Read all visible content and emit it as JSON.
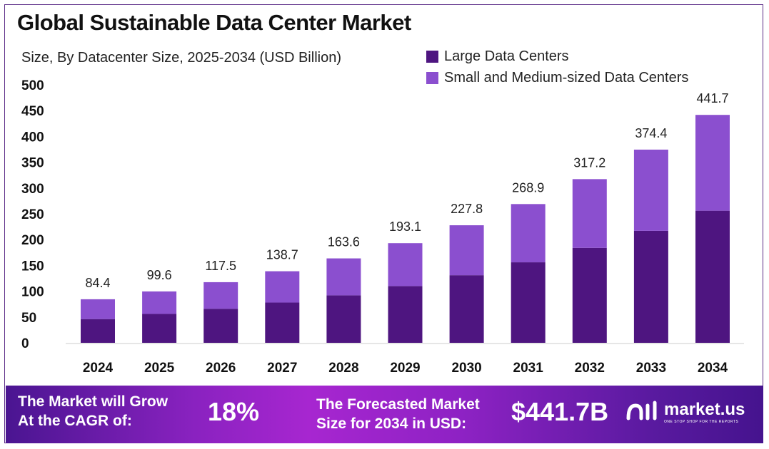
{
  "chart_data": {
    "type": "bar",
    "stacked": true,
    "title": "Global Sustainable Data Center Market",
    "subtitle": "Size, By Datacenter Size, 2025-2034 (USD Billion)",
    "categories": [
      "2024",
      "2025",
      "2026",
      "2027",
      "2028",
      "2029",
      "2030",
      "2031",
      "2032",
      "2033",
      "2034"
    ],
    "series": [
      {
        "name": "Large Data Centers",
        "color": "#4e1580",
        "values": [
          46,
          56,
          66,
          78,
          92,
          110,
          131,
          156,
          184,
          217,
          256
        ]
      },
      {
        "name": "Small and Medium-sized Data Centers",
        "color": "#8b4fcf",
        "values": [
          38.4,
          43.6,
          51.5,
          60.7,
          71.6,
          83.1,
          96.8,
          112.9,
          133.2,
          157.4,
          185.7
        ]
      }
    ],
    "totals": [
      "84.4",
      "99.6",
      "117.5",
      "138.7",
      "163.6",
      "193.1",
      "227.8",
      "268.9",
      "317.2",
      "374.4",
      "441.7"
    ],
    "yticks": [
      "0",
      "50",
      "100",
      "150",
      "200",
      "250",
      "300",
      "350",
      "400",
      "450",
      "500"
    ],
    "ylim": [
      0,
      500
    ],
    "grid": false,
    "legend": "top-right"
  },
  "footer": {
    "cagr_label_1": "The Market will Grow",
    "cagr_label_2": "At the CAGR of:",
    "cagr_value": "18%",
    "forecast_label_1": "The Forecasted Market",
    "forecast_label_2": "Size for 2034 in USD:",
    "forecast_value": "$441.7B",
    "brand": "market.us",
    "brand_tagline": "ONE STOP SHOP FOR THE REPORTS"
  }
}
